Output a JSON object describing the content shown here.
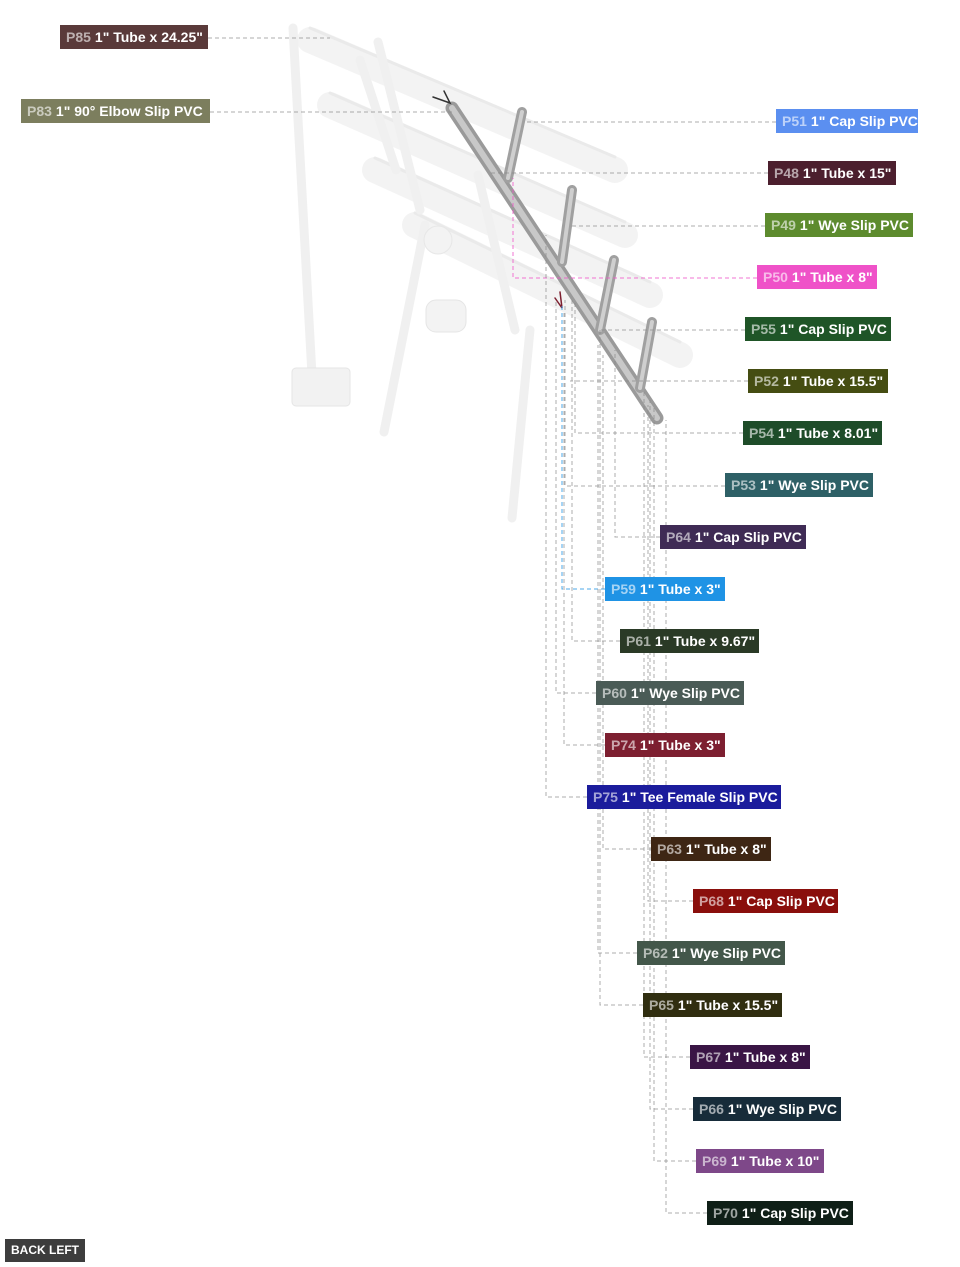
{
  "view_button": {
    "label": "BACK LEFT"
  },
  "parts": [
    {
      "id": "P85",
      "desc": "1\" Tube x 24.25\"",
      "color": "#5a3a3a"
    },
    {
      "id": "P83",
      "desc": "1\" 90° Elbow Slip PVC",
      "color": "#7c7e5e"
    },
    {
      "id": "P51",
      "desc": "1\" Cap Slip PVC",
      "color": "#5b8ff0"
    },
    {
      "id": "P48",
      "desc": "1\" Tube x 15\"",
      "color": "#4c1f2e"
    },
    {
      "id": "P49",
      "desc": "1\" Wye Slip PVC",
      "color": "#5d8b2e"
    },
    {
      "id": "P50",
      "desc": "1\" Tube x 8\"",
      "color": "#ef52c8"
    },
    {
      "id": "P55",
      "desc": "1\" Cap Slip PVC",
      "color": "#1f5527"
    },
    {
      "id": "P52",
      "desc": "1\" Tube x 15.5\"",
      "color": "#454d12"
    },
    {
      "id": "P54",
      "desc": "1\" Tube x 8.01\"",
      "color": "#1e4c29"
    },
    {
      "id": "P53",
      "desc": "1\" Wye Slip PVC",
      "color": "#2e6066"
    },
    {
      "id": "P64",
      "desc": "1\" Cap Slip PVC",
      "color": "#3f2b55"
    },
    {
      "id": "P59",
      "desc": "1\" Tube x 3\"",
      "color": "#1f93e5"
    },
    {
      "id": "P61",
      "desc": "1\" Tube x 9.67\"",
      "color": "#2a3a26"
    },
    {
      "id": "P60",
      "desc": "1\" Wye Slip PVC",
      "color": "#4a5b56"
    },
    {
      "id": "P74",
      "desc": "1\" Tube x 3\"",
      "color": "#7d1f30"
    },
    {
      "id": "P75",
      "desc": "1\" Tee Female Slip PVC",
      "color": "#1b1c9c"
    },
    {
      "id": "P63",
      "desc": "1\" Tube x 8\"",
      "color": "#3e2614"
    },
    {
      "id": "P68",
      "desc": "1\" Cap Slip PVC",
      "color": "#8a0f0c"
    },
    {
      "id": "P62",
      "desc": "1\" Wye Slip PVC",
      "color": "#43574a"
    },
    {
      "id": "P65",
      "desc": "1\" Tube x 15.5\"",
      "color": "#302e10"
    },
    {
      "id": "P67",
      "desc": "1\" Tube x 8\"",
      "color": "#3a1545"
    },
    {
      "id": "P66",
      "desc": "1\" Wye Slip PVC",
      "color": "#172c3a"
    },
    {
      "id": "P69",
      "desc": "1\" Tube x 10\"",
      "color": "#7e4889"
    },
    {
      "id": "P70",
      "desc": "1\" Cap Slip PVC",
      "color": "#0f1f17"
    }
  ]
}
